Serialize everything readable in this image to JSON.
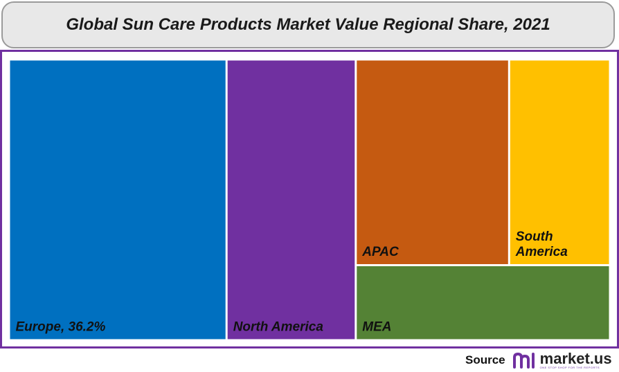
{
  "title": "Global Sun Care Products Market Value Regional Share, 2021",
  "chart_data": {
    "type": "treemap",
    "title": "Global Sun Care Products Market Value Regional Share, 2021",
    "tiles": [
      {
        "name": "Europe",
        "label": "Europe, 36.2%",
        "value": 36.2,
        "color": "#0070c0"
      },
      {
        "name": "North America",
        "label": "North America",
        "value": 21.5,
        "color": "#7030a0"
      },
      {
        "name": "APAC",
        "label": "APAC",
        "value": 18.7,
        "color": "#c55a11"
      },
      {
        "name": "South America",
        "label": "South\nAmerica",
        "value": 12.3,
        "color": "#ffc000"
      },
      {
        "name": "MEA",
        "label": "MEA",
        "value": 11.3,
        "color": "#548235"
      }
    ]
  },
  "source": {
    "label": "Source",
    "logo_text": "market.us",
    "tagline": "ONE STOP SHOP FOR THE REPORTS"
  },
  "colors": {
    "frame": "#7030a0",
    "title_bg": "#e8e8e8",
    "logo_accent": "#7030a0"
  }
}
